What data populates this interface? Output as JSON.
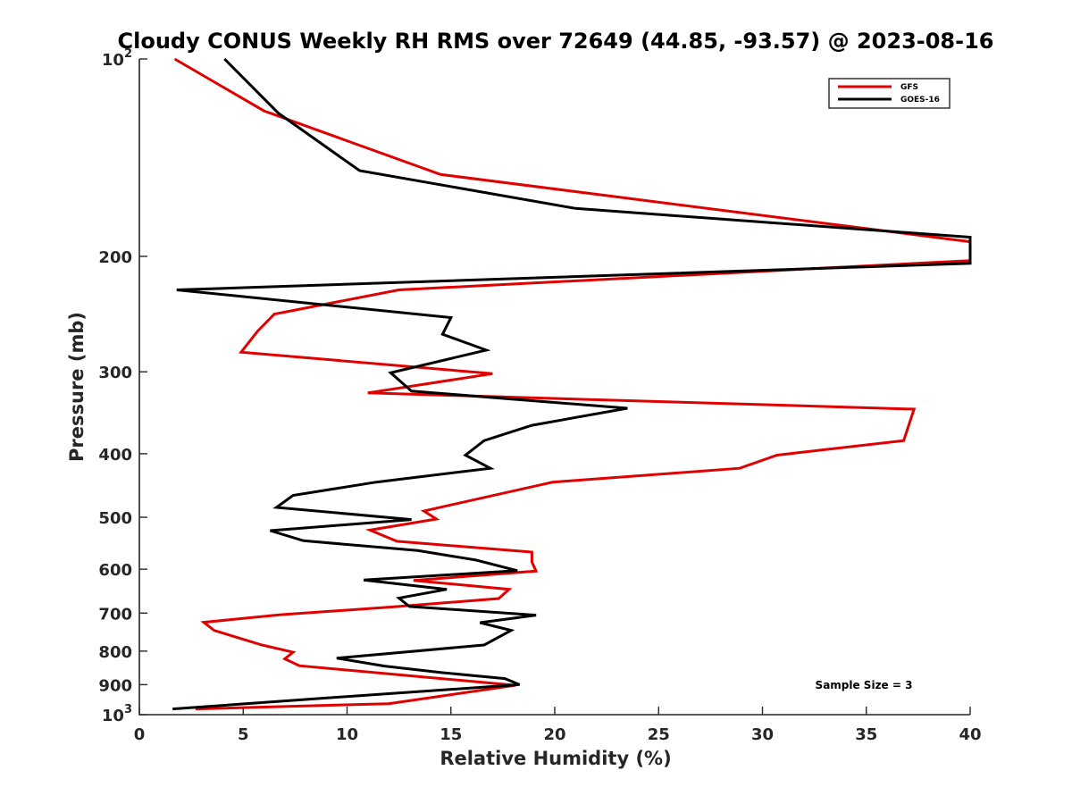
{
  "chart_data": {
    "type": "line",
    "title": "Cloudy CONUS Weekly RH RMS over 72649 (44.85, -93.57) @ 2023-08-16",
    "xlabel": "Relative Humidity (%)",
    "ylabel": "Pressure (mb)",
    "xlim": [
      0,
      40
    ],
    "ylim": [
      100,
      1000
    ],
    "y_scale": "log",
    "y_reversed": true,
    "grid": false,
    "legend_position": "top-right",
    "x_ticks": [
      "0",
      "5",
      "10",
      "15",
      "20",
      "25",
      "30",
      "35",
      "40"
    ],
    "y_ticks": [
      {
        "value": 100,
        "base": "10",
        "exp": "2"
      },
      {
        "value": 200,
        "label": "200"
      },
      {
        "value": 300,
        "label": "300"
      },
      {
        "value": 400,
        "label": "400"
      },
      {
        "value": 500,
        "label": "500"
      },
      {
        "value": 600,
        "label": "600"
      },
      {
        "value": 700,
        "label": "700"
      },
      {
        "value": 800,
        "label": "800"
      },
      {
        "value": 900,
        "label": "900"
      },
      {
        "value": 1000,
        "base": "10",
        "exp": "3"
      }
    ],
    "annotation": "Sample Size = 3",
    "series": [
      {
        "name": "GFS",
        "color": "#e00000",
        "points": [
          [
            1.7,
            100
          ],
          [
            6.0,
            120
          ],
          [
            14.5,
            150
          ],
          [
            40.0,
            190
          ],
          [
            40.0,
            203
          ],
          [
            12.5,
            225
          ],
          [
            6.5,
            245
          ],
          [
            5.7,
            260
          ],
          [
            4.9,
            280
          ],
          [
            17.0,
            302
          ],
          [
            11.0,
            323
          ],
          [
            37.3,
            342
          ],
          [
            36.8,
            382
          ],
          [
            30.7,
            402
          ],
          [
            28.9,
            421
          ],
          [
            19.9,
            442
          ],
          [
            13.7,
            489
          ],
          [
            14.3,
            503
          ],
          [
            11.1,
            523
          ],
          [
            12.4,
            544
          ],
          [
            18.9,
            565
          ],
          [
            18.9,
            585
          ],
          [
            19.1,
            604
          ],
          [
            13.2,
            624
          ],
          [
            17.8,
            644
          ],
          [
            17.3,
            665
          ],
          [
            12.2,
            685
          ],
          [
            6.8,
            704
          ],
          [
            3.1,
            723
          ],
          [
            3.6,
            744
          ],
          [
            5.9,
            783
          ],
          [
            7.4,
            803
          ],
          [
            7.0,
            822
          ],
          [
            7.7,
            842
          ],
          [
            18.1,
            902
          ],
          [
            14.0,
            942
          ],
          [
            12.0,
            962
          ],
          [
            2.7,
            980
          ]
        ]
      },
      {
        "name": "GOES-16",
        "color": "#000000",
        "points": [
          [
            4.1,
            100
          ],
          [
            6.7,
            121
          ],
          [
            10.6,
            148
          ],
          [
            21.0,
            169
          ],
          [
            40.0,
            187
          ],
          [
            40.0,
            205
          ],
          [
            1.8,
            225
          ],
          [
            15.0,
            248
          ],
          [
            14.6,
            263
          ],
          [
            16.7,
            278
          ],
          [
            12.1,
            301
          ],
          [
            13.1,
            321
          ],
          [
            23.5,
            341
          ],
          [
            18.9,
            362
          ],
          [
            16.6,
            382
          ],
          [
            15.7,
            402
          ],
          [
            16.9,
            421
          ],
          [
            11.4,
            442
          ],
          [
            7.4,
            463
          ],
          [
            6.6,
            483
          ],
          [
            13.1,
            504
          ],
          [
            6.3,
            524
          ],
          [
            7.9,
            543
          ],
          [
            13.4,
            562
          ],
          [
            16.2,
            581
          ],
          [
            18.2,
            603
          ],
          [
            10.8,
            623
          ],
          [
            14.8,
            644
          ],
          [
            12.5,
            664
          ],
          [
            13.0,
            684
          ],
          [
            19.1,
            705
          ],
          [
            16.4,
            724
          ],
          [
            17.9,
            744
          ],
          [
            16.6,
            783
          ],
          [
            9.5,
            820
          ],
          [
            11.8,
            843
          ],
          [
            14.6,
            863
          ],
          [
            17.6,
            881
          ],
          [
            18.3,
            900
          ],
          [
            9.2,
            942
          ],
          [
            1.6,
            980
          ]
        ]
      }
    ]
  }
}
